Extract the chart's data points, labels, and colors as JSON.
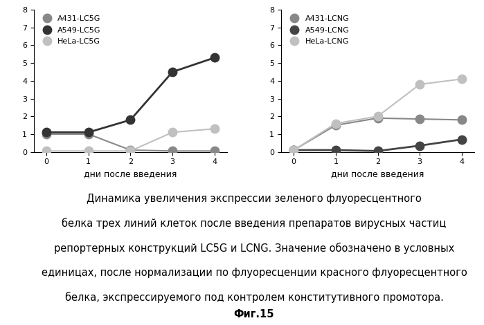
{
  "x": [
    0,
    1,
    2,
    3,
    4
  ],
  "left_series": {
    "A431-LC5G": {
      "values": [
        1.0,
        1.0,
        0.1,
        0.05,
        0.05
      ],
      "color": "#888888",
      "lw": 1.5
    },
    "A549-LC5G": {
      "values": [
        1.1,
        1.1,
        1.8,
        4.5,
        5.3
      ],
      "color": "#333333",
      "lw": 2.0
    },
    "HeLa-LC5G": {
      "values": [
        0.05,
        0.05,
        0.05,
        1.1,
        1.3
      ],
      "color": "#c0c0c0",
      "lw": 1.5
    }
  },
  "right_series": {
    "A431-LCNG": {
      "values": [
        0.1,
        1.5,
        1.9,
        1.85,
        1.8
      ],
      "color": "#888888",
      "lw": 1.5
    },
    "A549-LCNG": {
      "values": [
        0.1,
        0.1,
        0.05,
        0.35,
        0.7
      ],
      "color": "#444444",
      "lw": 2.0
    },
    "HeLa-LCNG": {
      "values": [
        0.1,
        1.6,
        2.0,
        3.8,
        4.1
      ],
      "color": "#c0c0c0",
      "lw": 1.5
    }
  },
  "xlabel": "дни после введения",
  "ylim": [
    0,
    8
  ],
  "yticks": [
    0,
    1,
    2,
    3,
    4,
    5,
    6,
    7,
    8
  ],
  "xticks": [
    0,
    1,
    2,
    3,
    4
  ],
  "marker": "o",
  "markersize": 9,
  "caption_lines": [
    "Динамика увеличения экспрессии зеленого флуоресцентного",
    "белка трех линий клеток после введения препаратов вирусных частиц",
    "репортерных конструкций LC5G и LCNG. Значение обозначено в условных",
    "единицах, после нормализации по флуоресценции красного флуоресцентного",
    "белка, экспрессируемого под контролем конститутивного промотора."
  ],
  "fig_label": "Фиг.15",
  "background_color": "#ffffff",
  "caption_fontsize": 10.5,
  "xlabel_fontsize": 9,
  "tick_fontsize": 8,
  "legend_fontsize": 8
}
